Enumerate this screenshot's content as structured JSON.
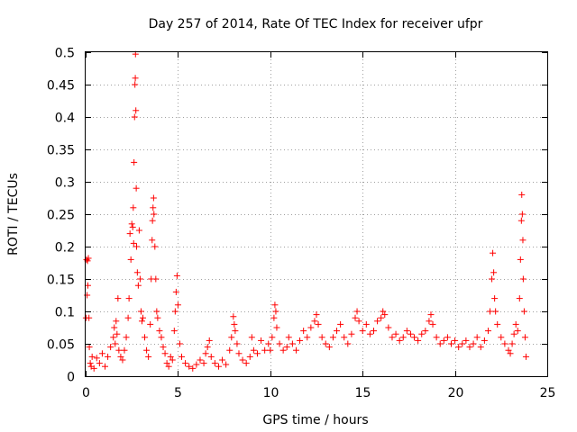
{
  "chart_data": {
    "type": "scatter",
    "title": "Day 257 of 2014, Rate Of TEC Index for receiver ufpr",
    "xlabel": "GPS time / hours",
    "ylabel": "ROTI / TECUs",
    "xlim": [
      0,
      25
    ],
    "ylim": [
      0,
      0.5
    ],
    "grid": true,
    "marker": "+",
    "series_color": "#ff0000",
    "x_ticks": [
      "0",
      "5",
      "10",
      "15",
      "20",
      "25"
    ],
    "y_ticks": [
      "0",
      "0.05",
      "0.1",
      "0.15",
      "0.2",
      "0.25",
      "0.3",
      "0.35",
      "0.4",
      "0.45",
      "0.5"
    ],
    "series": [
      {
        "name": "ROTI",
        "points": [
          [
            0.02,
            0.09
          ],
          [
            0.05,
            0.18
          ],
          [
            0.08,
            0.125
          ],
          [
            0.1,
            0.178
          ],
          [
            0.12,
            0.14
          ],
          [
            0.15,
            0.182
          ],
          [
            0.18,
            0.09
          ],
          [
            0.2,
            0.045
          ],
          [
            0.25,
            0.02
          ],
          [
            0.3,
            0.015
          ],
          [
            0.35,
            0.03
          ],
          [
            0.45,
            0.012
          ],
          [
            0.6,
            0.028
          ],
          [
            0.75,
            0.02
          ],
          [
            0.9,
            0.035
          ],
          [
            1.05,
            0.015
          ],
          [
            1.2,
            0.03
          ],
          [
            1.35,
            0.045
          ],
          [
            1.5,
            0.06
          ],
          [
            1.55,
            0.075
          ],
          [
            1.6,
            0.05
          ],
          [
            1.65,
            0.085
          ],
          [
            1.7,
            0.065
          ],
          [
            1.75,
            0.12
          ],
          [
            1.8,
            0.04
          ],
          [
            1.9,
            0.03
          ],
          [
            2.0,
            0.025
          ],
          [
            2.1,
            0.04
          ],
          [
            2.2,
            0.06
          ],
          [
            2.3,
            0.09
          ],
          [
            2.35,
            0.12
          ],
          [
            2.4,
            0.22
          ],
          [
            2.45,
            0.18
          ],
          [
            2.5,
            0.235
          ],
          [
            2.55,
            0.23
          ],
          [
            2.58,
            0.26
          ],
          [
            2.6,
            0.205
          ],
          [
            2.62,
            0.33
          ],
          [
            2.65,
            0.4
          ],
          [
            2.67,
            0.45
          ],
          [
            2.69,
            0.46
          ],
          [
            2.7,
            0.497
          ],
          [
            2.72,
            0.41
          ],
          [
            2.74,
            0.29
          ],
          [
            2.76,
            0.2
          ],
          [
            2.8,
            0.16
          ],
          [
            2.85,
            0.14
          ],
          [
            2.9,
            0.225
          ],
          [
            2.95,
            0.15
          ],
          [
            3.0,
            0.1
          ],
          [
            3.05,
            0.085
          ],
          [
            3.1,
            0.09
          ],
          [
            3.2,
            0.06
          ],
          [
            3.3,
            0.04
          ],
          [
            3.4,
            0.03
          ],
          [
            3.5,
            0.08
          ],
          [
            3.55,
            0.15
          ],
          [
            3.6,
            0.21
          ],
          [
            3.62,
            0.24
          ],
          [
            3.65,
            0.26
          ],
          [
            3.68,
            0.275
          ],
          [
            3.7,
            0.25
          ],
          [
            3.75,
            0.2
          ],
          [
            3.8,
            0.15
          ],
          [
            3.85,
            0.1
          ],
          [
            3.9,
            0.09
          ],
          [
            4.0,
            0.07
          ],
          [
            4.1,
            0.06
          ],
          [
            4.2,
            0.045
          ],
          [
            4.3,
            0.035
          ],
          [
            4.4,
            0.02
          ],
          [
            4.5,
            0.015
          ],
          [
            4.6,
            0.03
          ],
          [
            4.7,
            0.025
          ],
          [
            4.8,
            0.07
          ],
          [
            4.85,
            0.1
          ],
          [
            4.9,
            0.13
          ],
          [
            4.95,
            0.155
          ],
          [
            5.0,
            0.11
          ],
          [
            5.1,
            0.05
          ],
          [
            5.2,
            0.03
          ],
          [
            5.4,
            0.02
          ],
          [
            5.6,
            0.015
          ],
          [
            5.8,
            0.012
          ],
          [
            6.0,
            0.018
          ],
          [
            6.2,
            0.025
          ],
          [
            6.4,
            0.02
          ],
          [
            6.5,
            0.035
          ],
          [
            6.6,
            0.045
          ],
          [
            6.7,
            0.055
          ],
          [
            6.8,
            0.03
          ],
          [
            7.0,
            0.02
          ],
          [
            7.2,
            0.015
          ],
          [
            7.4,
            0.025
          ],
          [
            7.6,
            0.018
          ],
          [
            7.8,
            0.04
          ],
          [
            7.9,
            0.06
          ],
          [
            8.0,
            0.092
          ],
          [
            8.05,
            0.08
          ],
          [
            8.1,
            0.07
          ],
          [
            8.2,
            0.05
          ],
          [
            8.3,
            0.035
          ],
          [
            8.5,
            0.025
          ],
          [
            8.7,
            0.02
          ],
          [
            8.9,
            0.03
          ],
          [
            9.0,
            0.06
          ],
          [
            9.1,
            0.04
          ],
          [
            9.3,
            0.035
          ],
          [
            9.5,
            0.055
          ],
          [
            9.7,
            0.04
          ],
          [
            9.9,
            0.05
          ],
          [
            10.0,
            0.04
          ],
          [
            10.1,
            0.06
          ],
          [
            10.2,
            0.09
          ],
          [
            10.25,
            0.11
          ],
          [
            10.3,
            0.1
          ],
          [
            10.35,
            0.075
          ],
          [
            10.5,
            0.05
          ],
          [
            10.7,
            0.04
          ],
          [
            10.9,
            0.045
          ],
          [
            11.0,
            0.06
          ],
          [
            11.2,
            0.05
          ],
          [
            11.4,
            0.04
          ],
          [
            11.6,
            0.055
          ],
          [
            11.8,
            0.07
          ],
          [
            12.0,
            0.06
          ],
          [
            12.2,
            0.075
          ],
          [
            12.4,
            0.085
          ],
          [
            12.5,
            0.095
          ],
          [
            12.6,
            0.08
          ],
          [
            12.8,
            0.06
          ],
          [
            13.0,
            0.05
          ],
          [
            13.2,
            0.045
          ],
          [
            13.4,
            0.06
          ],
          [
            13.6,
            0.07
          ],
          [
            13.8,
            0.08
          ],
          [
            14.0,
            0.06
          ],
          [
            14.2,
            0.05
          ],
          [
            14.4,
            0.065
          ],
          [
            14.6,
            0.09
          ],
          [
            14.7,
            0.1
          ],
          [
            14.8,
            0.085
          ],
          [
            15.0,
            0.07
          ],
          [
            15.2,
            0.08
          ],
          [
            15.4,
            0.065
          ],
          [
            15.6,
            0.07
          ],
          [
            15.8,
            0.085
          ],
          [
            16.0,
            0.09
          ],
          [
            16.1,
            0.1
          ],
          [
            16.2,
            0.095
          ],
          [
            16.4,
            0.075
          ],
          [
            16.6,
            0.06
          ],
          [
            16.8,
            0.065
          ],
          [
            17.0,
            0.055
          ],
          [
            17.2,
            0.06
          ],
          [
            17.4,
            0.07
          ],
          [
            17.6,
            0.065
          ],
          [
            17.8,
            0.06
          ],
          [
            18.0,
            0.055
          ],
          [
            18.2,
            0.065
          ],
          [
            18.4,
            0.07
          ],
          [
            18.6,
            0.085
          ],
          [
            18.7,
            0.095
          ],
          [
            18.8,
            0.08
          ],
          [
            19.0,
            0.06
          ],
          [
            19.2,
            0.05
          ],
          [
            19.4,
            0.055
          ],
          [
            19.6,
            0.06
          ],
          [
            19.8,
            0.05
          ],
          [
            20.0,
            0.055
          ],
          [
            20.2,
            0.045
          ],
          [
            20.4,
            0.05
          ],
          [
            20.6,
            0.055
          ],
          [
            20.8,
            0.045
          ],
          [
            21.0,
            0.05
          ],
          [
            21.2,
            0.06
          ],
          [
            21.4,
            0.045
          ],
          [
            21.6,
            0.055
          ],
          [
            21.8,
            0.07
          ],
          [
            21.9,
            0.1
          ],
          [
            22.0,
            0.15
          ],
          [
            22.05,
            0.19
          ],
          [
            22.1,
            0.16
          ],
          [
            22.15,
            0.12
          ],
          [
            22.2,
            0.1
          ],
          [
            22.3,
            0.08
          ],
          [
            22.5,
            0.06
          ],
          [
            22.7,
            0.05
          ],
          [
            22.9,
            0.04
          ],
          [
            23.0,
            0.035
          ],
          [
            23.1,
            0.05
          ],
          [
            23.2,
            0.065
          ],
          [
            23.3,
            0.08
          ],
          [
            23.4,
            0.07
          ],
          [
            23.5,
            0.12
          ],
          [
            23.55,
            0.18
          ],
          [
            23.6,
            0.24
          ],
          [
            23.62,
            0.28
          ],
          [
            23.65,
            0.25
          ],
          [
            23.68,
            0.21
          ],
          [
            23.7,
            0.15
          ],
          [
            23.75,
            0.1
          ],
          [
            23.8,
            0.06
          ],
          [
            23.85,
            0.03
          ]
        ]
      }
    ]
  }
}
